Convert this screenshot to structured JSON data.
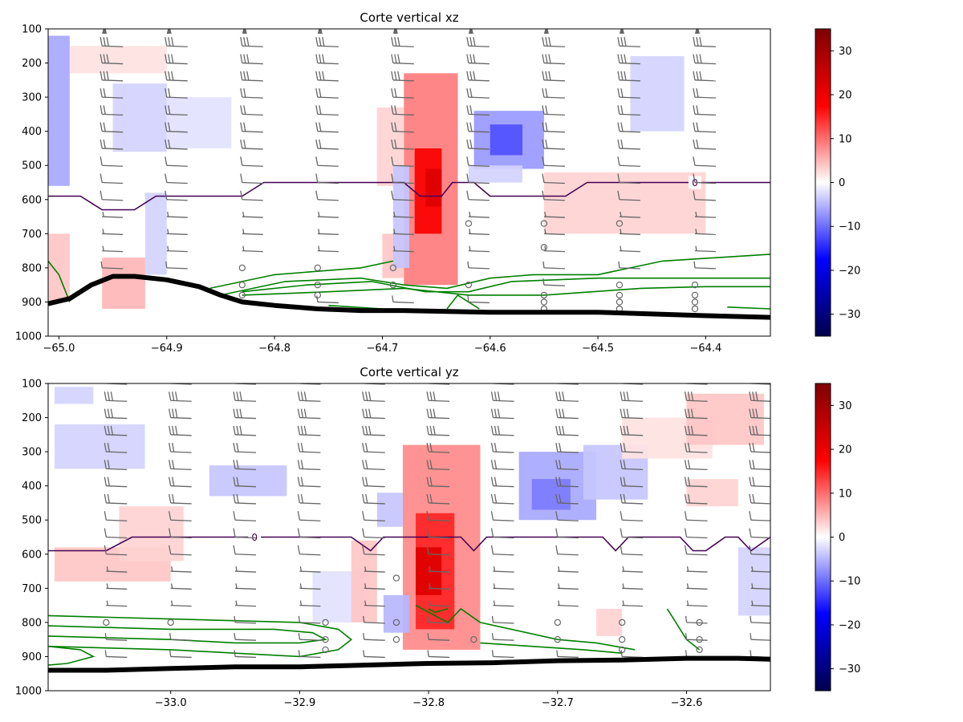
{
  "colors": {
    "colormap_low": "#00004c",
    "colormap_mid_low": "#0000ff",
    "colormap_zero": "#ffffff",
    "colormap_mid_high": "#ff0000",
    "colormap_high": "#7f0000",
    "zero_isotherm": "#440154",
    "low_contour": "#008000",
    "terrain": "#000000",
    "wind_barbs": "#666666"
  },
  "colorbar": {
    "ticks": [
      "30",
      "20",
      "10",
      "0",
      "−10",
      "−20",
      "−30"
    ],
    "tick_values": [
      30,
      20,
      10,
      0,
      -10,
      -20,
      -30
    ],
    "range": [
      -35,
      35
    ]
  },
  "chart_data": [
    {
      "type": "heatmap",
      "title": "Corte vertical xz",
      "xlabel": "",
      "ylabel": "",
      "xlim": [
        -65.01,
        -64.34
      ],
      "ylim": [
        1000,
        100
      ],
      "x_ticks": [
        "−65.0",
        "−64.9",
        "−64.8",
        "−64.7",
        "−64.6",
        "−64.5",
        "−64.4"
      ],
      "x_tick_values": [
        -65.0,
        -64.9,
        -64.8,
        -64.7,
        -64.6,
        -64.5,
        -64.4
      ],
      "y_ticks": [
        "100",
        "200",
        "300",
        "400",
        "500",
        "600",
        "700",
        "800",
        "900",
        "1000"
      ],
      "y_tick_values": [
        100,
        200,
        300,
        400,
        500,
        600,
        700,
        800,
        900,
        1000
      ],
      "grid": false,
      "contour_label": "0",
      "cells": [
        {
          "x0": -64.68,
          "x1": -64.63,
          "p0": 230,
          "p1": 850,
          "value": 9
        },
        {
          "x0": -64.67,
          "x1": -64.645,
          "p0": 450,
          "p1": 700,
          "value": 18
        },
        {
          "x0": -64.66,
          "x1": -64.645,
          "p0": 510,
          "p1": 620,
          "value": 22
        },
        {
          "x0": -64.705,
          "x1": -64.68,
          "p0": 330,
          "p1": 560,
          "value": 3
        },
        {
          "x0": -64.7,
          "x1": -64.68,
          "p0": 700,
          "p1": 830,
          "value": 4
        },
        {
          "x0": -64.69,
          "x1": -64.675,
          "p0": 500,
          "p1": 800,
          "value": -4
        },
        {
          "x0": -64.615,
          "x1": -64.55,
          "p0": 340,
          "p1": 510,
          "value": -7
        },
        {
          "x0": -64.6,
          "x1": -64.57,
          "p0": 380,
          "p1": 470,
          "value": -12
        },
        {
          "x0": -64.62,
          "x1": -64.57,
          "p0": 500,
          "p1": 550,
          "value": -3
        },
        {
          "x0": -64.55,
          "x1": -64.4,
          "p0": 520,
          "p1": 700,
          "value": 3
        },
        {
          "x0": -64.47,
          "x1": -64.42,
          "p0": 180,
          "p1": 400,
          "value": -3
        },
        {
          "x0": -65.01,
          "x1": -64.99,
          "p0": 120,
          "p1": 560,
          "value": -6
        },
        {
          "x0": -64.95,
          "x1": -64.9,
          "p0": 260,
          "p1": 460,
          "value": -3
        },
        {
          "x0": -64.9,
          "x1": -64.84,
          "p0": 300,
          "p1": 450,
          "value": -2
        },
        {
          "x0": -64.99,
          "x1": -64.9,
          "p0": 150,
          "p1": 230,
          "value": 2
        },
        {
          "x0": -64.96,
          "x1": -64.92,
          "p0": 770,
          "p1": 920,
          "value": 5
        },
        {
          "x0": -65.01,
          "x1": -64.99,
          "p0": 700,
          "p1": 900,
          "value": 4
        },
        {
          "x0": -64.92,
          "x1": -64.9,
          "p0": 580,
          "p1": 820,
          "value": -3
        }
      ],
      "zero_contour": {
        "value": 0,
        "x": [
          -65.01,
          -64.98,
          -64.96,
          -64.93,
          -64.91,
          -64.83,
          -64.81,
          -64.68,
          -64.665,
          -64.645,
          -64.635,
          -64.615,
          -64.6,
          -64.585,
          -64.53,
          -64.51,
          -64.34
        ],
        "p": [
          590,
          590,
          630,
          630,
          590,
          590,
          550,
          550,
          590,
          590,
          550,
          550,
          590,
          590,
          590,
          550,
          550
        ]
      },
      "low_contours": [
        {
          "x": [
            -65.01,
            -65.0,
            -64.99
          ],
          "p": [
            780,
            820,
            900
          ]
        },
        {
          "x": [
            -64.86,
            -64.8,
            -64.72,
            -64.69
          ],
          "p": [
            860,
            820,
            800,
            780
          ]
        },
        {
          "x": [
            -64.85,
            -64.79,
            -64.72,
            -64.68,
            -64.64,
            -64.6,
            -64.56,
            -64.5,
            -64.44,
            -64.34
          ],
          "p": [
            880,
            840,
            830,
            850,
            860,
            830,
            820,
            820,
            780,
            760
          ]
        },
        {
          "x": [
            -64.83,
            -64.77,
            -64.71,
            -64.66,
            -64.62,
            -64.58,
            -64.5,
            -64.42,
            -64.34
          ],
          "p": [
            870,
            850,
            840,
            870,
            870,
            840,
            830,
            830,
            830
          ]
        },
        {
          "x": [
            -64.83,
            -64.75,
            -64.68,
            -64.62,
            -64.55,
            -64.46,
            -64.4,
            -64.34
          ],
          "p": [
            880,
            870,
            860,
            880,
            880,
            860,
            855,
            855
          ]
        },
        {
          "x": [
            -64.75,
            -64.7,
            -64.68
          ],
          "p": [
            910,
            920,
            930
          ]
        },
        {
          "x": [
            -64.64,
            -64.63,
            -64.61
          ],
          "p": [
            920,
            880,
            920
          ]
        },
        {
          "x": [
            -64.38,
            -64.34
          ],
          "p": [
            915,
            920
          ]
        }
      ],
      "terrain": {
        "x": [
          -65.01,
          -64.99,
          -64.97,
          -64.95,
          -64.93,
          -64.9,
          -64.87,
          -64.85,
          -64.83,
          -64.8,
          -64.76,
          -64.72,
          -64.68,
          -64.6,
          -64.5,
          -64.4,
          -64.34
        ],
        "p": [
          905,
          890,
          850,
          825,
          825,
          835,
          855,
          880,
          900,
          910,
          920,
          925,
          925,
          930,
          930,
          940,
          945
        ]
      },
      "wind_columns_x": [
        -64.96,
        -64.9,
        -64.83,
        -64.76,
        -64.69,
        -64.62,
        -64.55,
        -64.48,
        -64.41
      ],
      "wind_levels": [
        100,
        150,
        200,
        250,
        300,
        350,
        400,
        450,
        500,
        550,
        600,
        650,
        700,
        750,
        800,
        850,
        900
      ],
      "calm_marks": [
        {
          "x": -64.83,
          "p": 800
        },
        {
          "x": -64.83,
          "p": 850
        },
        {
          "x": -64.83,
          "p": 880
        },
        {
          "x": -64.76,
          "p": 800
        },
        {
          "x": -64.76,
          "p": 850
        },
        {
          "x": -64.76,
          "p": 880
        },
        {
          "x": -64.69,
          "p": 800
        },
        {
          "x": -64.69,
          "p": 850
        },
        {
          "x": -64.62,
          "p": 670
        },
        {
          "x": -64.62,
          "p": 850
        },
        {
          "x": -64.55,
          "p": 670
        },
        {
          "x": -64.55,
          "p": 740
        },
        {
          "x": -64.55,
          "p": 880
        },
        {
          "x": -64.55,
          "p": 900
        },
        {
          "x": -64.55,
          "p": 920
        },
        {
          "x": -64.48,
          "p": 670
        },
        {
          "x": -64.48,
          "p": 850
        },
        {
          "x": -64.48,
          "p": 880
        },
        {
          "x": -64.48,
          "p": 900
        },
        {
          "x": -64.48,
          "p": 920
        },
        {
          "x": -64.41,
          "p": 850
        },
        {
          "x": -64.41,
          "p": 880
        },
        {
          "x": -64.41,
          "p": 900
        },
        {
          "x": -64.41,
          "p": 920
        }
      ]
    },
    {
      "type": "heatmap",
      "title": "Corte vertical yz",
      "xlabel": "",
      "ylabel": "",
      "xlim": [
        -33.095,
        -32.535
      ],
      "ylim": [
        1000,
        100
      ],
      "x_ticks": [
        "−33.0",
        "−32.9",
        "−32.8",
        "−32.7",
        "−32.6"
      ],
      "x_tick_values": [
        -33.0,
        -32.9,
        -32.8,
        -32.7,
        -32.6
      ],
      "y_ticks": [
        "100",
        "200",
        "300",
        "400",
        "500",
        "600",
        "700",
        "800",
        "900",
        "1000"
      ],
      "y_tick_values": [
        100,
        200,
        300,
        400,
        500,
        600,
        700,
        800,
        900,
        1000
      ],
      "grid": false,
      "contour_label": "0",
      "cells": [
        {
          "x0": -32.82,
          "x1": -32.76,
          "p0": 280,
          "p1": 880,
          "value": 8
        },
        {
          "x0": -32.81,
          "x1": -32.78,
          "p0": 480,
          "p1": 820,
          "value": 15
        },
        {
          "x0": -32.81,
          "x1": -32.79,
          "p0": 580,
          "p1": 720,
          "value": 22
        },
        {
          "x0": -32.835,
          "x1": -32.815,
          "p0": 720,
          "p1": 830,
          "value": -5
        },
        {
          "x0": -32.84,
          "x1": -32.82,
          "p0": 420,
          "p1": 520,
          "value": -4
        },
        {
          "x0": -32.73,
          "x1": -32.67,
          "p0": 300,
          "p1": 500,
          "value": -6
        },
        {
          "x0": -32.72,
          "x1": -32.69,
          "p0": 380,
          "p1": 470,
          "value": -9
        },
        {
          "x0": -32.68,
          "x1": -32.63,
          "p0": 280,
          "p1": 440,
          "value": -4
        },
        {
          "x0": -32.65,
          "x1": -32.58,
          "p0": 200,
          "p1": 320,
          "value": 2
        },
        {
          "x0": -32.6,
          "x1": -32.54,
          "p0": 130,
          "p1": 280,
          "value": 4
        },
        {
          "x0": -32.6,
          "x1": -32.56,
          "p0": 380,
          "p1": 460,
          "value": 3
        },
        {
          "x0": -33.09,
          "x1": -33.02,
          "p0": 220,
          "p1": 350,
          "value": -3
        },
        {
          "x0": -32.97,
          "x1": -32.91,
          "p0": 340,
          "p1": 430,
          "value": -4
        },
        {
          "x0": -33.09,
          "x1": -33.0,
          "p0": 580,
          "p1": 680,
          "value": 4
        },
        {
          "x0": -33.04,
          "x1": -32.99,
          "p0": 460,
          "p1": 620,
          "value": 3
        },
        {
          "x0": -32.89,
          "x1": -32.85,
          "p0": 650,
          "p1": 800,
          "value": -2
        },
        {
          "x0": -32.86,
          "x1": -32.84,
          "p0": 560,
          "p1": 800,
          "value": 4
        },
        {
          "x0": -32.56,
          "x1": -32.535,
          "p0": 580,
          "p1": 780,
          "value": -3
        },
        {
          "x0": -32.67,
          "x1": -32.65,
          "p0": 760,
          "p1": 840,
          "value": 3
        },
        {
          "x0": -33.09,
          "x1": -33.06,
          "p0": 110,
          "p1": 160,
          "value": -3
        }
      ],
      "zero_contour": {
        "value": 0,
        "x": [
          -33.095,
          -33.05,
          -33.03,
          -32.86,
          -32.845,
          -32.835,
          -32.775,
          -32.765,
          -32.755,
          -32.665,
          -32.655,
          -32.645,
          -32.605,
          -32.595,
          -32.585,
          -32.57,
          -32.56,
          -32.55,
          -32.535
        ],
        "p": [
          590,
          590,
          550,
          550,
          590,
          550,
          550,
          590,
          550,
          550,
          590,
          550,
          550,
          590,
          590,
          550,
          550,
          590,
          550
        ]
      },
      "low_contours": [
        {
          "x": [
            -33.095,
            -33.0,
            -32.9,
            -32.87,
            -32.86,
            -32.87,
            -32.9,
            -32.95,
            -33.0,
            -33.095
          ],
          "p": [
            780,
            790,
            800,
            820,
            850,
            880,
            900,
            890,
            880,
            870
          ]
        },
        {
          "x": [
            -33.095,
            -33.0,
            -32.92,
            -32.89,
            -32.88,
            -32.9,
            -32.95,
            -33.0,
            -33.095
          ],
          "p": [
            810,
            820,
            820,
            830,
            850,
            860,
            860,
            850,
            840
          ]
        },
        {
          "x": [
            -33.095,
            -33.07,
            -33.06,
            -33.08,
            -33.095
          ],
          "p": [
            870,
            880,
            900,
            920,
            925
          ]
        },
        {
          "x": [
            -32.81,
            -32.795,
            -32.785,
            -32.775,
            -32.76,
            -32.7,
            -32.67,
            -32.64
          ],
          "p": [
            750,
            780,
            800,
            760,
            800,
            850,
            860,
            880
          ]
        },
        {
          "x": [
            -32.8,
            -32.795,
            -32.785
          ],
          "p": [
            760,
            770,
            760
          ]
        },
        {
          "x": [
            -32.76,
            -32.72,
            -32.68,
            -32.65
          ],
          "p": [
            860,
            870,
            880,
            890
          ]
        },
        {
          "x": [
            -32.615,
            -32.61,
            -32.605,
            -32.6,
            -32.59
          ],
          "p": [
            760,
            790,
            820,
            850,
            880
          ]
        }
      ],
      "terrain": {
        "x": [
          -33.095,
          -33.05,
          -33.0,
          -32.95,
          -32.9,
          -32.85,
          -32.8,
          -32.75,
          -32.7,
          -32.65,
          -32.6,
          -32.56,
          -32.535
        ],
        "p": [
          940,
          940,
          935,
          930,
          930,
          925,
          920,
          918,
          912,
          910,
          905,
          905,
          908
        ]
      },
      "wind_columns_x": [
        -33.05,
        -33.0,
        -32.95,
        -32.9,
        -32.85,
        -32.8,
        -32.75,
        -32.7,
        -32.65,
        -32.6,
        -32.55
      ],
      "wind_levels": [
        100,
        150,
        200,
        250,
        300,
        350,
        400,
        450,
        500,
        550,
        600,
        650,
        700,
        750,
        800,
        850,
        900
      ],
      "calm_marks": [
        {
          "x": -33.05,
          "p": 800
        },
        {
          "x": -33.0,
          "p": 800
        },
        {
          "x": -32.88,
          "p": 800
        },
        {
          "x": -32.88,
          "p": 850
        },
        {
          "x": -32.88,
          "p": 880
        },
        {
          "x": -32.825,
          "p": 670
        },
        {
          "x": -32.825,
          "p": 800
        },
        {
          "x": -32.825,
          "p": 850
        },
        {
          "x": -32.765,
          "p": 850
        },
        {
          "x": -32.7,
          "p": 800
        },
        {
          "x": -32.7,
          "p": 850
        },
        {
          "x": -32.65,
          "p": 800
        },
        {
          "x": -32.65,
          "p": 850
        },
        {
          "x": -32.65,
          "p": 880
        },
        {
          "x": -32.59,
          "p": 800
        },
        {
          "x": -32.59,
          "p": 850
        },
        {
          "x": -32.59,
          "p": 880
        }
      ]
    }
  ]
}
